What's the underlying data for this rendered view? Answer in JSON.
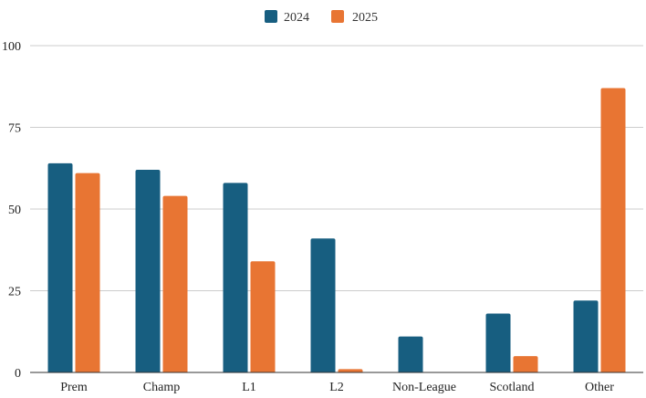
{
  "chart_data": {
    "type": "bar",
    "categories": [
      "Prem",
      "Champ",
      "L1",
      "L2",
      "Non-League",
      "Scotland",
      "Other"
    ],
    "series": [
      {
        "name": "2024",
        "color": "#175e80",
        "values": [
          64,
          62,
          58,
          41,
          11,
          18,
          22
        ]
      },
      {
        "name": "2025",
        "color": "#e87533",
        "values": [
          61,
          54,
          34,
          1,
          0,
          5,
          87
        ]
      }
    ],
    "ylim": [
      0,
      100
    ],
    "yticks": [
      0,
      25,
      50,
      75,
      100
    ],
    "grid": true,
    "legend_position": "top-center"
  }
}
